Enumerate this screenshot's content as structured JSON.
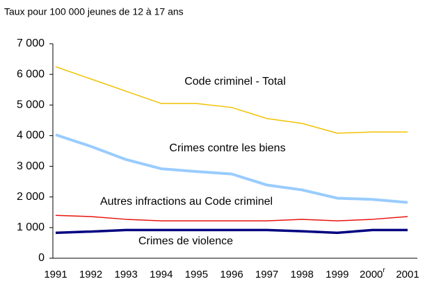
{
  "chart_data": {
    "type": "line",
    "title": "Taux pour 100 000 jeunes de 12 à 17 ans",
    "categories": [
      "1991",
      "1992",
      "1993",
      "1994",
      "1995",
      "1996",
      "1997",
      "1998",
      "1999",
      "2000",
      "2001"
    ],
    "category_superscripts": [
      null,
      null,
      null,
      null,
      null,
      null,
      null,
      null,
      null,
      "r",
      null
    ],
    "series": [
      {
        "name": "Code criminel - Total",
        "color": "#f2c100",
        "width": 1.5,
        "values": [
          6250,
          5850,
          5450,
          5050,
          5050,
          4920,
          4560,
          4400,
          4080,
          4120,
          4120
        ]
      },
      {
        "name": "Crimes contre les biens",
        "color": "#99ccff",
        "width": 4,
        "values": [
          4030,
          3650,
          3220,
          2920,
          2830,
          2750,
          2390,
          2230,
          1960,
          1920,
          1820
        ]
      },
      {
        "name": "Autres infractions au Code criminel",
        "color": "#e8120c",
        "width": 1.5,
        "values": [
          1400,
          1360,
          1270,
          1220,
          1220,
          1220,
          1220,
          1270,
          1220,
          1270,
          1360
        ]
      },
      {
        "name": "Crimes de violence",
        "color": "#000080",
        "width": 3.5,
        "values": [
          830,
          870,
          920,
          920,
          920,
          920,
          920,
          880,
          830,
          920,
          920
        ]
      }
    ],
    "ylim": [
      0,
      7000
    ],
    "yticks": [
      {
        "value": 0,
        "label": "0"
      },
      {
        "value": 1000,
        "label": "1 000"
      },
      {
        "value": 2000,
        "label": "2 000"
      },
      {
        "value": 3000,
        "label": "3 000"
      },
      {
        "value": 4000,
        "label": "4 000"
      },
      {
        "value": 5000,
        "label": "5 000"
      },
      {
        "value": 6000,
        "label": "6 000"
      },
      {
        "value": 7000,
        "label": "7 000"
      }
    ]
  }
}
